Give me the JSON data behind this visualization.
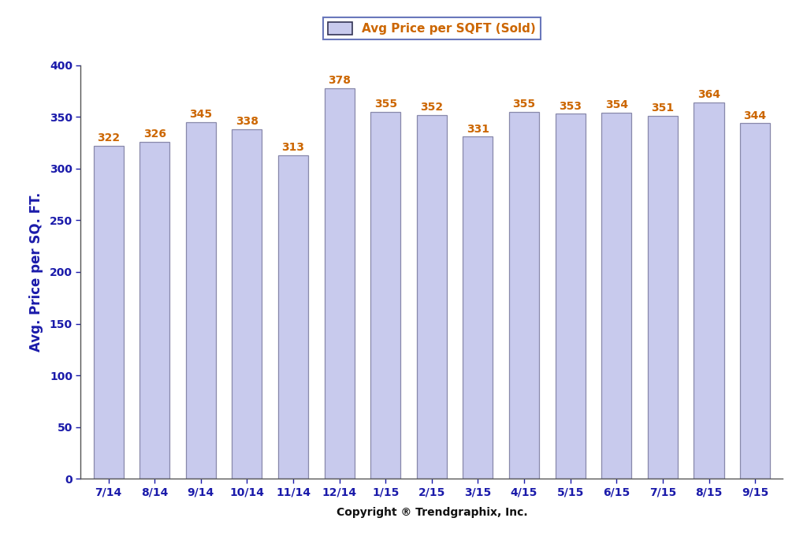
{
  "categories": [
    "7/14",
    "8/14",
    "9/14",
    "10/14",
    "11/14",
    "12/14",
    "1/15",
    "2/15",
    "3/15",
    "4/15",
    "5/15",
    "6/15",
    "7/15",
    "8/15",
    "9/15"
  ],
  "values": [
    322,
    326,
    345,
    338,
    313,
    378,
    355,
    352,
    331,
    355,
    353,
    354,
    351,
    364,
    344
  ],
  "bar_color": "#c8caed",
  "bar_edge_color": "#8888aa",
  "ylabel": "Avg. Price per SQ. FT.",
  "xlabel": "Copyright ® Trendgraphix, Inc.",
  "legend_label": "Avg Price per SQFT (Sold)",
  "ylim": [
    0,
    400
  ],
  "yticks": [
    0,
    50,
    100,
    150,
    200,
    250,
    300,
    350,
    400
  ],
  "background_color": "#ffffff",
  "bar_label_color": "#cc6600",
  "axis_label_color": "#1a1aaa",
  "tick_label_color": "#1a1aaa",
  "xlabel_color": "#111111",
  "legend_edge_color": "#4455aa",
  "legend_text_color": "#cc6600",
  "ylabel_fontsize": 12,
  "xlabel_fontsize": 10,
  "tick_fontsize": 10,
  "bar_label_fontsize": 10,
  "legend_fontsize": 11
}
